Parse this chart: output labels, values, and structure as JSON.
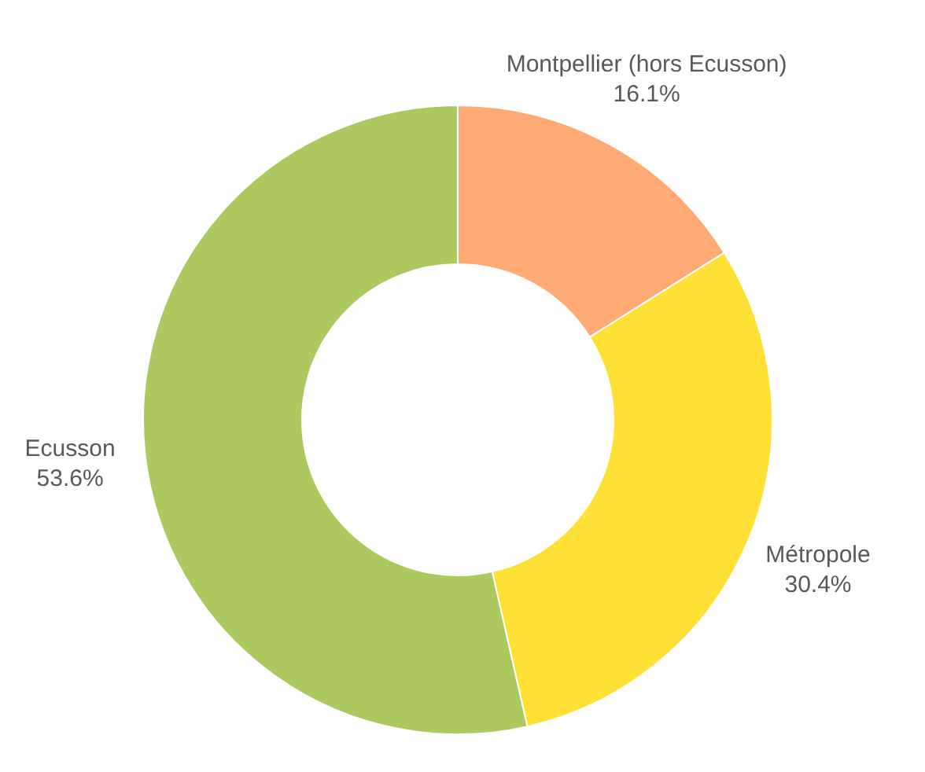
{
  "chart_data": {
    "type": "donut",
    "categories": [
      "Montpellier (hors Ecusson)",
      "Métropole",
      "Ecusson"
    ],
    "values": [
      16.1,
      30.4,
      53.6
    ],
    "colors": [
      "#ffa975",
      "#ffe135",
      "#abc95e"
    ],
    "value_labels": [
      "16.1%",
      "30.4%",
      "53.6%"
    ]
  }
}
